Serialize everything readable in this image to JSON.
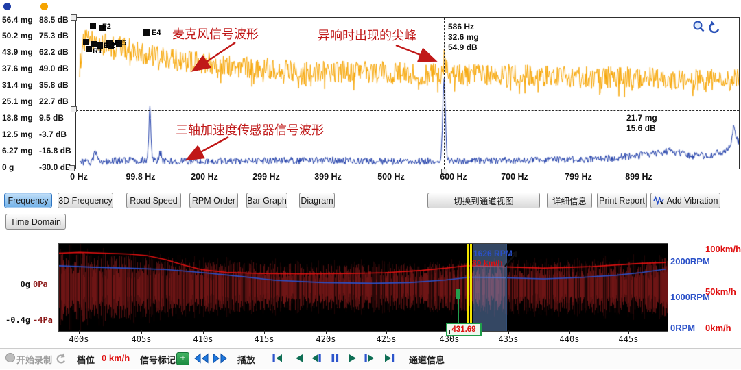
{
  "top_chart": {
    "legend_colors": [
      "#1f3da8",
      "#f6a400"
    ],
    "cursor_readout": [
      "586 Hz",
      "32.6 mg",
      "54.9 dB"
    ],
    "hline_readout": [
      "21.7 mg",
      "15.6 dB"
    ],
    "annotations": {
      "mic": "麦克风信号波形",
      "peak": "异响时出现的尖峰",
      "accel": "三轴加速度传感器信号波形"
    }
  },
  "toolbar": {
    "tabs": [
      "Frequency",
      "3D Frequency",
      "Road Speed",
      "RPM Order",
      "Bar Graph",
      "Diagram"
    ],
    "active_tab_index": 0,
    "switch_channel_view": "切换到通道视图",
    "details": "详细信息",
    "print_report": "Print Report",
    "add_vibration": "Add Vibration",
    "time_domain": "Time Domain"
  },
  "bottom_chart": {
    "cursor_time": "431.69",
    "cursor_rpm": "1626 RPM",
    "cursor_speed": "80 km/h"
  },
  "transport": {
    "record": "开始录制",
    "gear": "档位",
    "speed": "0 km/h",
    "signal_mark": "信号标记",
    "play": "播放",
    "channel_info": "通道信息"
  },
  "chart_data": [
    {
      "type": "line",
      "title": "frequency-spectrum",
      "xlabel": "Hz",
      "xlim_hz": [
        0,
        1060
      ],
      "x_ticks": [
        "0 Hz",
        "99.8 Hz",
        "200 Hz",
        "299 Hz",
        "399 Hz",
        "500 Hz",
        "600 Hz",
        "700 Hz",
        "799 Hz",
        "899 Hz"
      ],
      "y_axis_rows": [
        {
          "mg": "56.4 mg",
          "db": "88.5 dB"
        },
        {
          "mg": "50.2 mg",
          "db": "75.3 dB"
        },
        {
          "mg": "43.9 mg",
          "db": "62.2 dB"
        },
        {
          "mg": "37.6 mg",
          "db": "49.0 dB"
        },
        {
          "mg": "31.4 mg",
          "db": "35.8 dB"
        },
        {
          "mg": "25.1 mg",
          "db": "22.7 dB"
        },
        {
          "mg": "18.8 mg",
          "db": "9.5 dB"
        },
        {
          "mg": "12.5 mg",
          "db": "-3.7 dB"
        },
        {
          "mg": "6.27 mg",
          "db": "-16.8 dB"
        },
        {
          "mg": "0 g",
          "db": "-30.0 dB"
        }
      ],
      "series": [
        {
          "name": "microphone",
          "unit": "dB",
          "color": "#f6a400",
          "range": [
            -30,
            88.5
          ],
          "envelope": [
            [
              0,
              50
            ],
            [
              4,
              66
            ],
            [
              10,
              73
            ],
            [
              20,
              72
            ],
            [
              35,
              69
            ],
            [
              60,
              67
            ],
            [
              90,
              64
            ],
            [
              120,
              59
            ],
            [
              160,
              56
            ],
            [
              200,
              54
            ],
            [
              250,
              51
            ],
            [
              300,
              50
            ],
            [
              350,
              48
            ],
            [
              420,
              47
            ],
            [
              500,
              46
            ],
            [
              560,
              45
            ],
            [
              620,
              44
            ],
            [
              700,
              44
            ],
            [
              760,
              43
            ],
            [
              820,
              42
            ],
            [
              880,
              42
            ],
            [
              940,
              41
            ],
            [
              1000,
              40
            ],
            [
              1060,
              40
            ]
          ],
          "noise": 9,
          "peaks": [
            {
              "hz": 586,
              "amp": 12,
              "w": 2.4
            }
          ]
        },
        {
          "name": "accelerometer",
          "unit": "mg",
          "color": "#1f3da8",
          "range": [
            0,
            56.4
          ],
          "envelope": [
            [
              0,
              1.5
            ],
            [
              50,
              2
            ],
            [
              100,
              2.2
            ],
            [
              200,
              1.8
            ],
            [
              300,
              2
            ],
            [
              400,
              2.2
            ],
            [
              500,
              1.8
            ],
            [
              600,
              2
            ],
            [
              700,
              2.2
            ],
            [
              800,
              2.5
            ],
            [
              850,
              3
            ],
            [
              900,
              4
            ],
            [
              930,
              5
            ],
            [
              950,
              6
            ],
            [
              980,
              4
            ],
            [
              1010,
              4
            ],
            [
              1040,
              6
            ],
            [
              1060,
              9
            ]
          ],
          "noise": 1.4,
          "peaks": [
            {
              "hz": 25,
              "amp": 4,
              "w": 2
            },
            {
              "hz": 113,
              "amp": 20.5,
              "w": 1.6
            },
            {
              "hz": 130,
              "amp": 3,
              "w": 1.5
            },
            {
              "hz": 586,
              "amp": 31,
              "w": 2.2
            },
            {
              "hz": 1052,
              "amp": 7,
              "w": 3
            }
          ]
        }
      ],
      "point_markers": [
        {
          "label": "F2",
          "sx": 20,
          "sy": 8,
          "lx": 38,
          "ly": 9
        },
        {
          "label": "E4",
          "sx": 98,
          "sy": 17,
          "lx": 110,
          "ly": 18
        },
        {
          "label": "E-5",
          "sx": 44,
          "sy": 33,
          "lx": 56,
          "ly": 33
        },
        {
          "label": "E-2",
          "sx": 30,
          "sy": 36,
          "lx": 40,
          "ly": 37
        },
        {
          "label": "R1",
          "sx": 14,
          "sy": 41,
          "lx": 24,
          "ly": 45
        }
      ],
      "extra_squares": [
        [
          34,
          10
        ],
        [
          10,
          31
        ],
        [
          22,
          34
        ],
        [
          46,
          36
        ],
        [
          58,
          33
        ]
      ],
      "cursor_hz": 586,
      "hline_mg": 21.7,
      "seed": 1234
    },
    {
      "type": "line",
      "title": "time-record",
      "x_ticks": [
        "400s",
        "405s",
        "410s",
        "415s",
        "420s",
        "425s",
        "430s",
        "435s",
        "440s",
        "445s"
      ],
      "left_axis": [
        {
          "g": "0g",
          "pa": "0Pa"
        },
        {
          "g": "-0.4g",
          "pa": "-4Pa"
        }
      ],
      "right_axis_rpm": [
        "2000RPM",
        "1000RPM",
        "0RPM"
      ],
      "right_axis_speed": [
        "100km/h",
        "50km/h",
        "0km/h"
      ],
      "cursor_time_s": 431.69,
      "speed_kmh": [
        [
          398.3,
          96
        ],
        [
          400,
          97
        ],
        [
          402,
          96
        ],
        [
          404,
          95
        ],
        [
          405.5,
          93
        ],
        [
          407,
          88
        ],
        [
          408.5,
          81
        ],
        [
          410,
          75
        ],
        [
          412,
          71.5
        ],
        [
          415,
          70
        ],
        [
          418,
          69.5
        ],
        [
          422,
          70
        ],
        [
          425,
          71
        ],
        [
          428,
          74
        ],
        [
          430,
          77
        ],
        [
          431.7,
          80
        ],
        [
          434,
          79
        ],
        [
          436,
          78
        ],
        [
          438,
          77
        ],
        [
          440,
          78
        ],
        [
          442,
          79
        ],
        [
          444,
          81
        ],
        [
          446,
          83
        ],
        [
          448,
          84
        ]
      ],
      "rpm": [
        [
          398.3,
          1900
        ],
        [
          401,
          1860
        ],
        [
          404,
          1830
        ],
        [
          407,
          1790
        ],
        [
          410,
          1700
        ],
        [
          413,
          1590
        ],
        [
          416,
          1470
        ],
        [
          420,
          1400
        ],
        [
          424,
          1380
        ],
        [
          427,
          1400
        ],
        [
          430,
          1480
        ],
        [
          432,
          1560
        ],
        [
          435,
          1540
        ],
        [
          438,
          1510
        ],
        [
          441,
          1550
        ],
        [
          444,
          1620
        ],
        [
          446,
          1700
        ],
        [
          448,
          1800
        ]
      ],
      "seed": 99
    }
  ]
}
